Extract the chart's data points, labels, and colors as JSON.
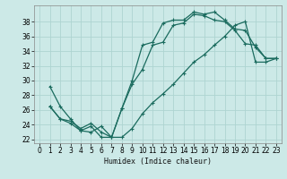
{
  "bg_color": "#cce9e7",
  "line_color": "#1a6b5e",
  "grid_color": "#aed4d1",
  "xlabel": "Humidex (Indice chaleur)",
  "ylabel_ticks": [
    22,
    24,
    26,
    28,
    30,
    32,
    34,
    36,
    38
  ],
  "xlim": [
    -0.5,
    23.5
  ],
  "ylim": [
    21.5,
    40.2
  ],
  "line1_x": [
    1,
    2,
    3,
    4,
    5,
    6,
    7,
    8,
    9,
    10,
    11,
    12,
    13,
    14,
    15,
    16,
    17,
    18,
    19,
    20,
    21,
    22,
    23
  ],
  "line1_y": [
    29.2,
    26.5,
    24.8,
    23.2,
    23.0,
    23.8,
    22.3,
    26.2,
    30.0,
    34.8,
    35.2,
    37.8,
    38.2,
    38.2,
    39.3,
    39.0,
    39.3,
    38.2,
    37.0,
    36.8,
    34.5,
    33.0,
    33.0
  ],
  "line2_x": [
    1,
    2,
    3,
    4,
    5,
    6,
    7,
    8,
    9,
    10,
    11,
    12,
    13,
    14,
    15,
    16,
    17,
    18,
    19,
    20,
    21,
    22,
    23
  ],
  "line2_y": [
    26.5,
    24.8,
    24.2,
    23.2,
    23.8,
    22.3,
    22.3,
    26.2,
    29.5,
    31.5,
    34.8,
    35.2,
    37.5,
    37.8,
    39.0,
    38.8,
    38.2,
    38.0,
    36.8,
    35.0,
    34.8,
    33.0,
    33.0
  ],
  "line3_x": [
    1,
    2,
    3,
    4,
    5,
    6,
    7,
    8,
    9,
    10,
    11,
    12,
    13,
    14,
    15,
    16,
    17,
    18,
    19,
    20,
    21,
    22,
    23
  ],
  "line3_y": [
    26.5,
    24.8,
    24.5,
    23.5,
    24.2,
    23.0,
    22.3,
    22.3,
    23.5,
    25.5,
    27.0,
    28.2,
    29.5,
    31.0,
    32.5,
    33.5,
    34.8,
    36.0,
    37.5,
    38.0,
    32.5,
    32.5,
    33.0
  ]
}
